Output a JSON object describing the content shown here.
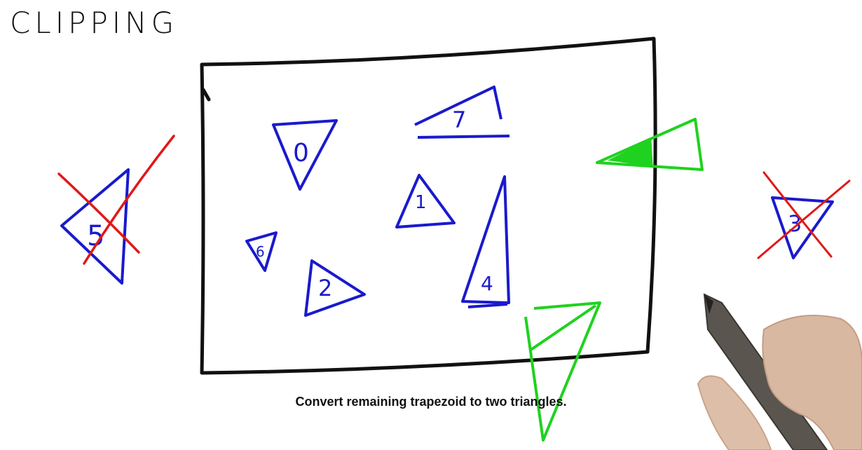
{
  "title": "CLIPPING",
  "caption": "Convert remaining trapezoid to two triangles.",
  "colors": {
    "ink": "#111111",
    "triangle": "#1a1acc",
    "clip_mark": "#e01818",
    "clipped": "#1fd21f",
    "background": "#ffffff"
  },
  "triangles": {
    "t0": "0",
    "t1": "1",
    "t2": "2",
    "t3": "3",
    "t4": "4",
    "t5": "5",
    "t6": "6",
    "t7": "7"
  },
  "icons": [
    "pen-icon",
    "hand-icon"
  ]
}
